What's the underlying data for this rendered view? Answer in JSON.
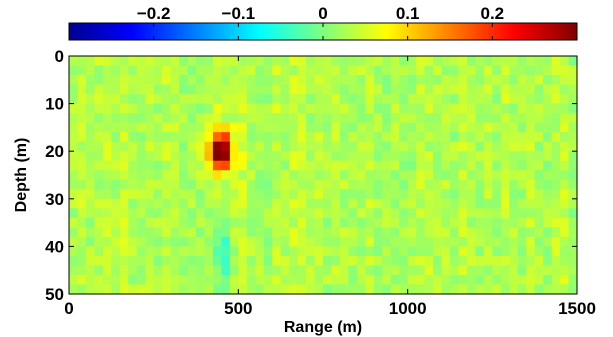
{
  "chart_data": {
    "type": "heatmap",
    "title": "",
    "xlabel": "Range (m)",
    "ylabel": "Depth (m)",
    "xlim": [
      0,
      1500
    ],
    "ylim": [
      0,
      50
    ],
    "y_reversed": true,
    "x_ticks": [
      0,
      500,
      1000,
      1500
    ],
    "y_ticks": [
      0,
      10,
      20,
      30,
      40,
      50
    ],
    "colormap": "jet",
    "colorbar": {
      "placement": "top",
      "clim": [
        -0.3,
        0.3
      ],
      "ticks": [
        -0.2,
        -0.1,
        0,
        0.1,
        0.2
      ],
      "tick_labels": [
        "−0.2",
        "−0.1",
        "0",
        "0.1",
        "0.2"
      ]
    },
    "grid_resolution": {
      "range_step_m": 25,
      "depth_step_m": 2
    },
    "background_value": 0.03,
    "features": [
      {
        "range_m": 450,
        "depth_m": 20,
        "peak_value": 0.3,
        "description_value_type": "positive anomaly"
      },
      {
        "range_m": 450,
        "depth_m": 42,
        "peak_value": -0.06,
        "description_value_type": "weak negative streak"
      }
    ]
  }
}
